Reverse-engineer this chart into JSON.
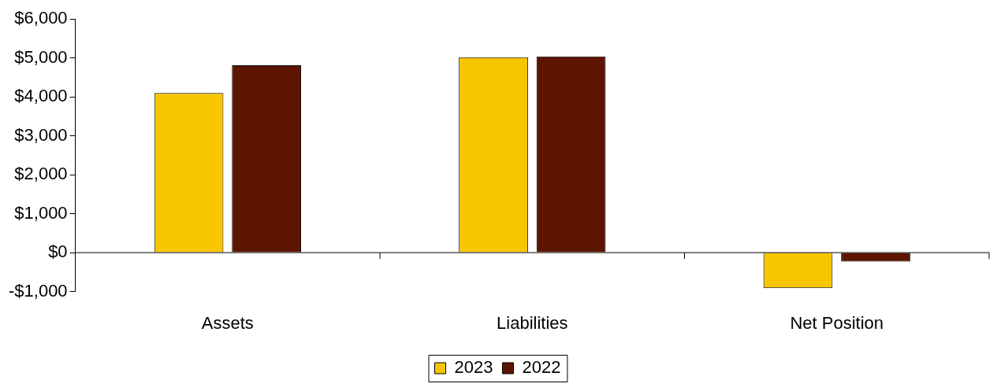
{
  "chart_data": {
    "type": "bar",
    "categories": [
      "Assets",
      "Liabilities",
      "Net Position"
    ],
    "series": [
      {
        "name": "2023",
        "color": "#f8c600",
        "values": [
          4100,
          5020,
          -910
        ]
      },
      {
        "name": "2022",
        "color": "#5c1500",
        "values": [
          4810,
          5040,
          -230
        ]
      }
    ],
    "ylim": [
      -1000,
      6000
    ],
    "yticks": [
      {
        "value": -1000,
        "label": "-$1,000"
      },
      {
        "value": 0,
        "label": "$0"
      },
      {
        "value": 1000,
        "label": "$1,000"
      },
      {
        "value": 2000,
        "label": "$2,000"
      },
      {
        "value": 3000,
        "label": "$3,000"
      },
      {
        "value": 4000,
        "label": "$4,000"
      },
      {
        "value": 5000,
        "label": "$5,000"
      },
      {
        "value": 6000,
        "label": "$6,000"
      }
    ],
    "legend": "bottom"
  }
}
